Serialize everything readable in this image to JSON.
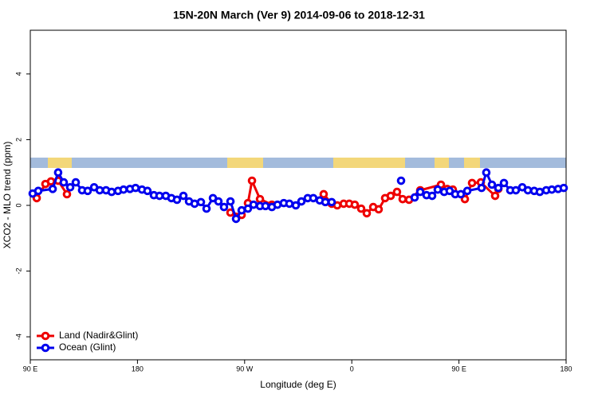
{
  "chart_data": {
    "type": "line",
    "title": "15N-20N March (Ver 9)   2014-09-06 to 2018-12-31",
    "x_label": "Longitude (deg E)",
    "y_label": "XCO2 - MLO trend (ppm)",
    "xlim": [
      90,
      540
    ],
    "ylim": [
      -4.7,
      5.33
    ],
    "xticks": [
      {
        "value": 90,
        "label": "90 E"
      },
      180,
      {
        "value": 270,
        "label": "90 W"
      },
      {
        "value": 360,
        "label": "0"
      },
      {
        "value": 450,
        "label": "90 E"
      },
      {
        "value": 540,
        "label": "180"
      }
    ],
    "yticks": [
      -4,
      -2,
      0,
      2,
      4
    ],
    "legend": "bottom-left",
    "series": [
      {
        "name": "Land (Nadir&Glint)",
        "color": "#ee0000",
        "x": [
          95.4,
          102.7,
          107.4,
          113.4,
          120.8,
          190,
          258.1,
          267.5,
          272.8,
          276.2,
          282.9,
          292.9,
          320,
          336.4,
          343.1,
          347.8,
          353.2,
          357.9,
          362.5,
          367.9,
          372.6,
          378,
          382.6,
          388,
          392.7,
          398,
          402.7,
          408.1,
          417.5,
          434.9,
          440.2,
          444.9,
          455,
          461,
          468.4,
          480.4,
          483.1
        ],
        "values": [
          0.22,
          0.65,
          0.73,
          0.75,
          0.34,
          null,
          -0.22,
          -0.29,
          0.07,
          0.75,
          0.19,
          0.02,
          null,
          0.34,
          0.05,
          0,
          0.05,
          0.05,
          0.02,
          -0.1,
          -0.24,
          -0.05,
          -0.12,
          0.22,
          0.29,
          0.41,
          0.19,
          0.17,
          0.46,
          0.63,
          0.5,
          0.48,
          0.19,
          0.68,
          0.7,
          0.29,
          0.5
        ]
      },
      {
        "name": "Ocean (Glint)",
        "color": "#0000ee",
        "x": [
          92,
          96.7,
          108.8,
          113.4,
          118.1,
          123.5,
          128.2,
          133.5,
          138.2,
          143.6,
          148.3,
          153.6,
          158.3,
          163.7,
          168.3,
          173.7,
          178.4,
          183.8,
          188.4,
          193.8,
          198.5,
          203.8,
          208.5,
          213.2,
          218.6,
          223.3,
          228,
          233.3,
          238,
          243.4,
          248,
          252.7,
          258.1,
          262.8,
          267.5,
          272.8,
          277.5,
          282.9,
          287.5,
          292.9,
          297.6,
          302.9,
          307.6,
          313,
          317.7,
          323,
          327.7,
          333.1,
          337.8,
          343.1,
          372,
          401.4,
          408,
          412.8,
          417.5,
          422.8,
          427.5,
          432.2,
          437.6,
          442.2,
          446.9,
          451.6,
          457,
          469,
          473,
          477.7,
          483.1,
          487.8,
          493.1,
          497.8,
          503.2,
          507.9,
          513.2,
          517.9,
          523.3,
          528,
          533.3,
          538
        ],
        "values": [
          0.36,
          0.44,
          0.5,
          1.0,
          0.7,
          0.55,
          0.7,
          0.46,
          0.44,
          0.55,
          0.46,
          0.46,
          0.41,
          0.44,
          0.48,
          0.5,
          0.53,
          0.48,
          0.44,
          0.31,
          0.29,
          0.29,
          0.22,
          0.17,
          0.29,
          0.12,
          0.05,
          0.1,
          -0.1,
          0.22,
          0.12,
          -0.05,
          0.12,
          -0.41,
          -0.15,
          -0.1,
          0.02,
          -0.02,
          -0.02,
          -0.05,
          0.02,
          0.07,
          0.05,
          0,
          0.12,
          0.22,
          0.22,
          0.15,
          0.1,
          0.1,
          null,
          0.75,
          null,
          0.24,
          0.41,
          0.31,
          0.29,
          0.48,
          0.41,
          0.44,
          0.34,
          0.34,
          0.44,
          0.53,
          1.0,
          0.63,
          0.53,
          0.68,
          0.46,
          0.46,
          0.55,
          0.46,
          0.44,
          0.41,
          0.46,
          0.48,
          0.5,
          0.53
        ]
      }
    ]
  }
}
